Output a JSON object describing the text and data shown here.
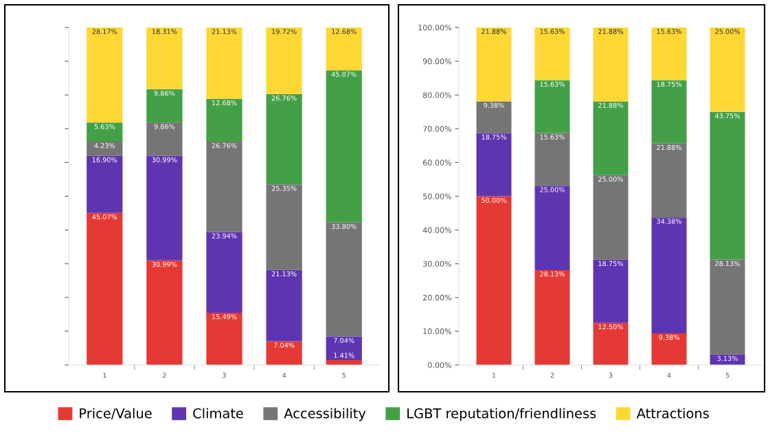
{
  "chart_data": [
    {
      "type": "bar",
      "stacked": true,
      "categories": [
        "1",
        "2",
        "3",
        "4",
        "5"
      ],
      "ylim": [
        0,
        100
      ],
      "yticks": [
        {
          "value": 0,
          "label": null
        },
        {
          "value": 10,
          "label": null
        },
        {
          "value": 20,
          "label": null
        },
        {
          "value": 30,
          "label": null
        },
        {
          "value": 40,
          "label": null
        },
        {
          "value": 50,
          "label": null
        },
        {
          "value": 60,
          "label": null
        },
        {
          "value": 70,
          "label": null
        },
        {
          "value": 80,
          "label": null
        },
        {
          "value": 90,
          "label": null
        },
        {
          "value": 100,
          "label": null
        }
      ],
      "tick_labels": "x",
      "grid": false,
      "legend": "bottom",
      "series": [
        {
          "name": "Price/Value",
          "color": "#e53935",
          "values": [
            45.07,
            30.99,
            15.49,
            7.04,
            1.41
          ],
          "value_labels": [
            "45.07%",
            "30.99%",
            "15.49%",
            "7.04%",
            "1.41%"
          ]
        },
        {
          "name": "Climate",
          "color": "#5e35b1",
          "values": [
            16.9,
            30.99,
            23.94,
            21.13,
            7.04
          ],
          "value_labels": [
            "16.90%",
            "30.99%",
            "23.94%",
            "21.13%",
            "7.04%"
          ]
        },
        {
          "name": "Accessibility",
          "color": "#757575",
          "values": [
            4.23,
            9.86,
            26.76,
            25.35,
            33.8
          ],
          "value_labels": [
            "4.23%",
            "9.86%",
            "26.76%",
            "25.35%",
            "33.80%"
          ]
        },
        {
          "name": "LGBT reputation/friendliness",
          "color": "#43a047",
          "values": [
            5.63,
            9.86,
            12.68,
            26.76,
            45.07
          ],
          "value_labels": [
            "5.63%",
            "9.86%",
            "12.68%",
            "26.76%",
            "45.07%"
          ]
        },
        {
          "name": "Attractions",
          "color": "#fdd835",
          "values": [
            28.17,
            18.31,
            21.13,
            19.72,
            12.68
          ],
          "value_labels": [
            "28.17%",
            "18.31%",
            "21.13%",
            "19.72%",
            "12.68%"
          ]
        }
      ]
    },
    {
      "type": "bar",
      "stacked": true,
      "categories": [
        "1",
        "2",
        "3",
        "4",
        "5"
      ],
      "ylim": [
        0,
        100
      ],
      "yticks": [
        {
          "value": 0,
          "label": "0.00%"
        },
        {
          "value": 10,
          "label": "10.00%"
        },
        {
          "value": 20,
          "label": "20.00%"
        },
        {
          "value": 30,
          "label": "30.00%"
        },
        {
          "value": 40,
          "label": "40.00%"
        },
        {
          "value": 50,
          "label": "50.00%"
        },
        {
          "value": 60,
          "label": "60.00%"
        },
        {
          "value": 70,
          "label": "70.00%"
        },
        {
          "value": 80,
          "label": "80.00%"
        },
        {
          "value": 90,
          "label": "90.00%"
        },
        {
          "value": 100,
          "label": "100.00%"
        }
      ],
      "grid": false,
      "series": [
        {
          "color": "#e53935",
          "values": [
            50.0,
            28.13,
            12.5,
            9.38,
            0
          ],
          "value_labels": [
            "50.00%",
            "28.13%",
            "12.50%",
            "9.38%",
            null
          ]
        },
        {
          "color": "#5e35b1",
          "values": [
            18.75,
            25.0,
            18.75,
            34.38,
            3.13
          ],
          "value_labels": [
            "18.75%",
            "25.00%",
            "18.75%",
            "34.38%",
            "3.13%"
          ]
        },
        {
          "color": "#757575",
          "values": [
            9.38,
            15.63,
            25.0,
            21.88,
            28.13
          ],
          "value_labels": [
            "9.38%",
            "15.63%",
            "25.00%",
            "21.88%",
            "28.13%"
          ]
        },
        {
          "color": "#43a047",
          "values": [
            0,
            15.63,
            21.88,
            18.75,
            43.75
          ],
          "value_labels": [
            null,
            "15.63%",
            "21.88%",
            "18.75%",
            "43.75%"
          ]
        },
        {
          "color": "#fdd835",
          "values": [
            21.88,
            15.63,
            21.88,
            15.63,
            25.0
          ],
          "value_labels": [
            "21.88%",
            "15.63%",
            "21.88%",
            "15.63%",
            "25.00%"
          ]
        }
      ]
    }
  ]
}
